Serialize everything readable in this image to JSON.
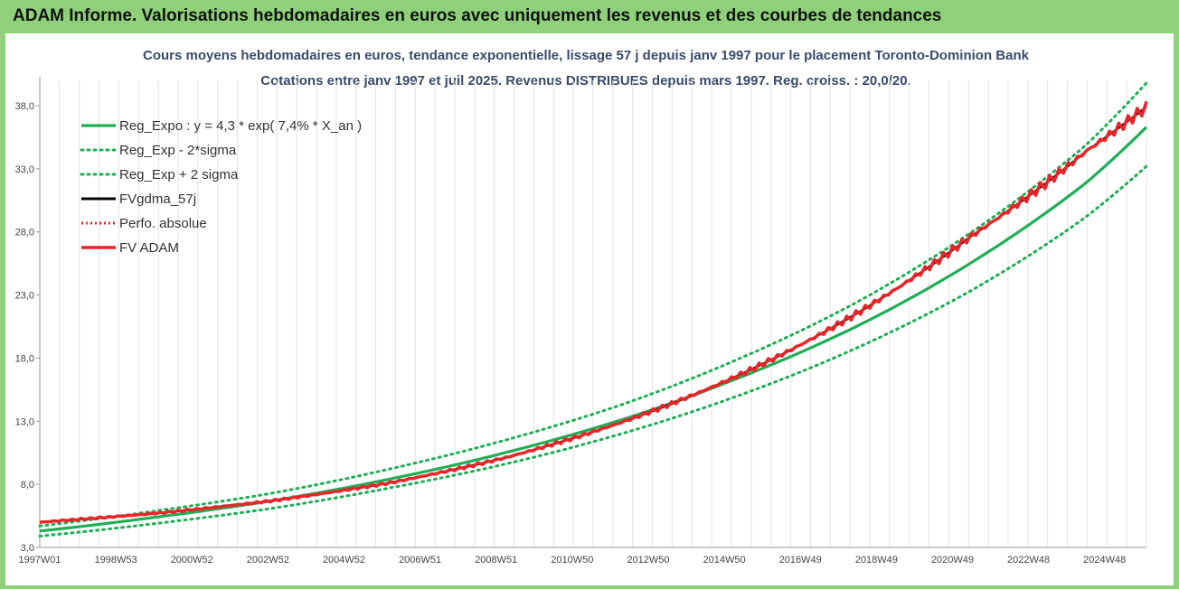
{
  "header": {
    "title": "ADAM Informe. Valorisations hebdomadaires en euros avec uniquement les revenus et des courbes de tendances"
  },
  "chart_data": {
    "type": "line",
    "title": "Cours moyens hebdomadaires en euros, tendance exponentielle, lissage 57 j depuis janv 1997 pour le placement Toronto-Dominion Bank",
    "subtitle": "Cotations entre janv 1997 et juil 2025. Revenus DISTRIBUES depuis mars 1997. Reg. croiss. : 20,0/20.",
    "xlabel": "",
    "ylabel": "",
    "ylim": [
      3.0,
      40.0
    ],
    "y_ticks": [
      "3,0",
      "8,0",
      "13,0",
      "18,0",
      "23,0",
      "28,0",
      "33,0",
      "38,0"
    ],
    "x_tick_labels": [
      "1997W01",
      "1998W53",
      "2000W52",
      "2002W52",
      "2004W52",
      "2006W51",
      "2008W51",
      "2010W50",
      "2012W50",
      "2014W50",
      "2016W49",
      "2018W49",
      "2020W49",
      "2022W48",
      "2024W48"
    ],
    "x_range_years": [
      1997.0,
      2025.55
    ],
    "grid": "vertical",
    "legend_placement": "top-left",
    "series": [
      {
        "name": "Reg_Expo : y = 4,3 * exp( 7,4% *  X_an )",
        "color": "#1fae55",
        "style": "solid",
        "x": [
          1997.0,
          2000.0,
          2003.0,
          2006.0,
          2009.0,
          2012.0,
          2015.0,
          2018.0,
          2021.0,
          2024.0,
          2025.55
        ],
        "y": [
          4.3,
          5.4,
          6.7,
          8.4,
          10.5,
          13.1,
          16.4,
          20.4,
          25.5,
          31.9,
          36.3
        ]
      },
      {
        "name": "Reg_Exp - 2*sigma",
        "color": "#1fae55",
        "style": "dotted",
        "x": [
          1997.0,
          2000.0,
          2003.0,
          2006.0,
          2009.0,
          2012.0,
          2015.0,
          2018.0,
          2021.0,
          2024.0,
          2025.55
        ],
        "y": [
          3.9,
          4.9,
          6.1,
          7.7,
          9.6,
          12.0,
          15.0,
          18.7,
          23.3,
          29.2,
          33.2
        ]
      },
      {
        "name": "Reg_Exp + 2 sigma",
        "color": "#1fae55",
        "style": "dotted",
        "x": [
          1997.0,
          2000.0,
          2003.0,
          2006.0,
          2009.0,
          2012.0,
          2015.0,
          2018.0,
          2021.0,
          2024.0,
          2025.55
        ],
        "y": [
          4.7,
          5.9,
          7.3,
          9.2,
          11.5,
          14.3,
          17.9,
          22.3,
          27.9,
          34.9,
          39.8
        ]
      },
      {
        "name": "FVgdma_57j",
        "color": "#000000",
        "style": "solid",
        "x": [
          1997.0,
          2000.0,
          2003.0,
          2006.0,
          2009.0,
          2012.0,
          2015.0,
          2018.0,
          2021.0,
          2024.0,
          2025.55
        ],
        "y": [
          5.0,
          5.7,
          6.7,
          8.1,
          10.1,
          12.9,
          16.6,
          21.4,
          27.6,
          34.4,
          37.9
        ]
      },
      {
        "name": "Perfo. absolue",
        "color": "#e8262a",
        "style": "dotted",
        "x": [
          1997.0,
          2000.0,
          2003.0,
          2006.0,
          2009.0,
          2012.0,
          2015.0,
          2018.0,
          2021.0,
          2024.0,
          2025.55
        ],
        "y": [
          5.0,
          5.7,
          6.7,
          8.1,
          10.1,
          12.9,
          16.6,
          21.4,
          27.6,
          34.4,
          37.9
        ]
      },
      {
        "name": "FV ADAM",
        "color": "#e8262a",
        "style": "solid",
        "x": [
          1997.0,
          2000.0,
          2003.0,
          2006.0,
          2009.0,
          2012.0,
          2015.0,
          2018.0,
          2021.0,
          2024.0,
          2025.55
        ],
        "y": [
          5.0,
          5.7,
          6.7,
          8.1,
          10.1,
          12.9,
          16.6,
          21.4,
          27.6,
          34.4,
          37.9
        ]
      }
    ]
  }
}
